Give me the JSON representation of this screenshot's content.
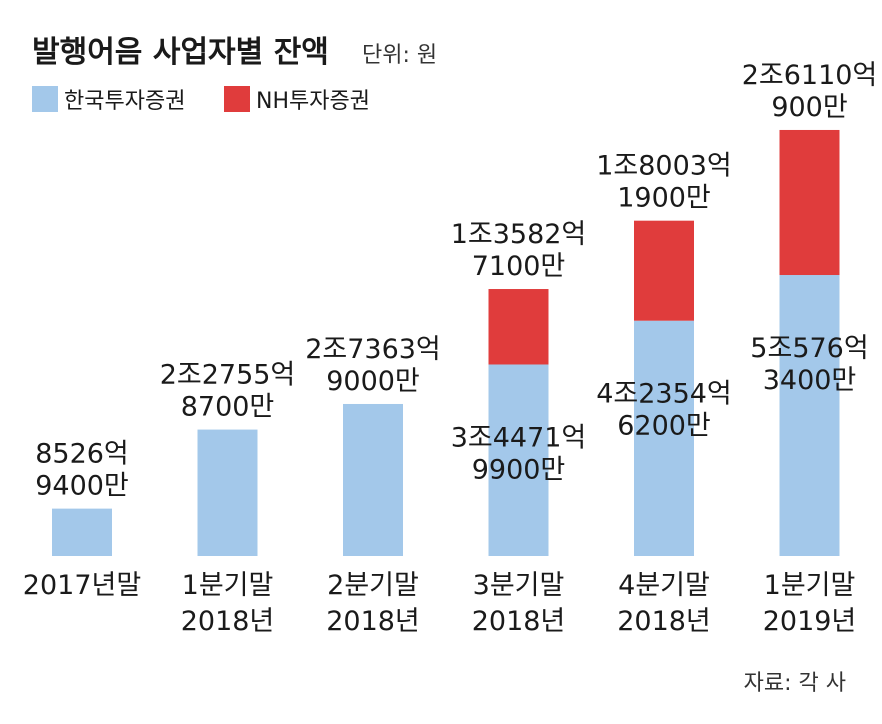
{
  "chart_data": {
    "type": "bar",
    "stacked": true,
    "title": "발행어음 사업자별 잔액",
    "unit_note": "단위: 원",
    "source": "자료: 각 사",
    "categories": [
      [
        "2017년말"
      ],
      [
        "1분기말",
        "2018년"
      ],
      [
        "2분기말",
        "2018년"
      ],
      [
        "3분기말",
        "2018년"
      ],
      [
        "4분기말",
        "2018년"
      ],
      [
        "1분기말",
        "2019년"
      ]
    ],
    "series": [
      {
        "name": "한국투자증권",
        "color": "#a3c8ea",
        "values": [
          852694000000,
          2275587000000,
          2736390000000,
          3447199000000,
          4235462000000,
          5057634000000
        ],
        "labels": [
          [
            "8526억",
            "9400만"
          ],
          [
            "2조2755억",
            "8700만"
          ],
          [
            "2조7363억",
            "9000만"
          ],
          [
            "3조4471억",
            "9900만"
          ],
          [
            "4조2354억",
            "6200만"
          ],
          [
            "5조576억",
            "3400만"
          ]
        ]
      },
      {
        "name": "NH투자증권",
        "color": "#e03c3c",
        "values": [
          0,
          0,
          0,
          1358271000000,
          1800319000000,
          2611009000000
        ],
        "labels": [
          [],
          [],
          [],
          [
            "1조3582억",
            "7100만"
          ],
          [
            "1조8003억",
            "1900만"
          ],
          [
            "2조6110억",
            "900만"
          ]
        ]
      }
    ],
    "legend_position": "top-left",
    "grid": false
  }
}
